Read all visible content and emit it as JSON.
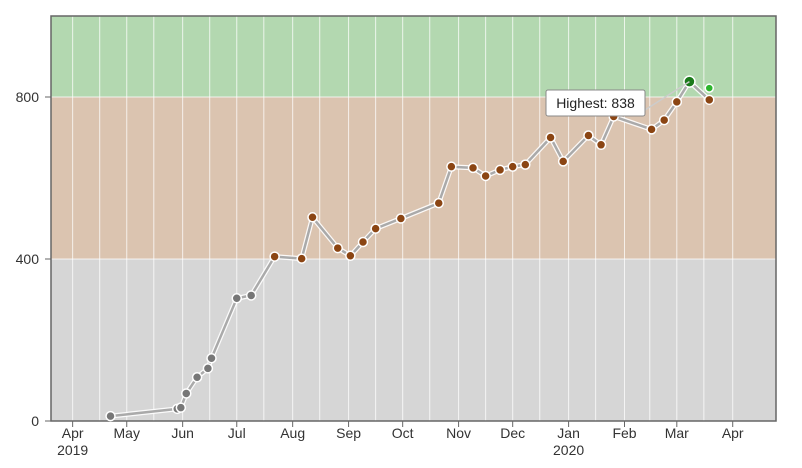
{
  "chart_data": {
    "type": "line",
    "title": "",
    "xlabel": "",
    "ylabel": "",
    "ylim": [
      0,
      1000
    ],
    "xlim": [
      "2019-03-20",
      "2020-04-25"
    ],
    "y_ticks": [
      "0",
      "400",
      "800"
    ],
    "x_ticks": [
      {
        "label": "Apr",
        "year": "2019",
        "date": "2019-04-01"
      },
      {
        "label": "May",
        "year": "",
        "date": "2019-05-01"
      },
      {
        "label": "Jun",
        "year": "",
        "date": "2019-06-01"
      },
      {
        "label": "Jul",
        "year": "",
        "date": "2019-07-01"
      },
      {
        "label": "Aug",
        "year": "",
        "date": "2019-08-01"
      },
      {
        "label": "Sep",
        "year": "",
        "date": "2019-09-01"
      },
      {
        "label": "Oct",
        "year": "",
        "date": "2019-10-01"
      },
      {
        "label": "Nov",
        "year": "",
        "date": "2019-11-01"
      },
      {
        "label": "Dec",
        "year": "",
        "date": "2019-12-01"
      },
      {
        "label": "Jan",
        "year": "2020",
        "date": "2020-01-01"
      },
      {
        "label": "Feb",
        "year": "",
        "date": "2020-02-01"
      },
      {
        "label": "Mar",
        "year": "",
        "date": "2020-03-01"
      },
      {
        "label": "Apr",
        "year": "",
        "date": "2020-04-01"
      }
    ],
    "bands": [
      {
        "from": 0,
        "to": 400,
        "color": "#d6d6d6"
      },
      {
        "from": 400,
        "to": 800,
        "color": "#dbc4b0"
      },
      {
        "from": 800,
        "to": 1000,
        "color": "#b3d8b0"
      }
    ],
    "grid": true,
    "line_color": "#aaaaaa",
    "point_colors": {
      "grey": "#777777",
      "brown": "#8b4513",
      "green": "#1a7a1a",
      "light_green": "#2db52d"
    },
    "series": [
      {
        "points": [
          {
            "x": "2019-04-22",
            "y": 12,
            "color": "grey"
          },
          {
            "x": "2019-05-29",
            "y": 30,
            "color": "grey"
          },
          {
            "x": "2019-05-31",
            "y": 33,
            "color": "grey"
          },
          {
            "x": "2019-06-03",
            "y": 68,
            "color": "grey"
          },
          {
            "x": "2019-06-09",
            "y": 108,
            "color": "grey"
          },
          {
            "x": "2019-06-15",
            "y": 130,
            "color": "grey"
          },
          {
            "x": "2019-06-17",
            "y": 155,
            "color": "grey"
          },
          {
            "x": "2019-07-01",
            "y": 303,
            "color": "grey"
          },
          {
            "x": "2019-07-09",
            "y": 310,
            "color": "grey"
          },
          {
            "x": "2019-07-22",
            "y": 406,
            "color": "brown"
          },
          {
            "x": "2019-08-06",
            "y": 401,
            "color": "brown"
          },
          {
            "x": "2019-08-12",
            "y": 503,
            "color": "brown"
          },
          {
            "x": "2019-08-26",
            "y": 427,
            "color": "brown"
          },
          {
            "x": "2019-09-02",
            "y": 408,
            "color": "brown"
          },
          {
            "x": "2019-09-09",
            "y": 442,
            "color": "brown"
          },
          {
            "x": "2019-09-16",
            "y": 475,
            "color": "brown"
          },
          {
            "x": "2019-09-30",
            "y": 500,
            "color": "brown"
          },
          {
            "x": "2019-10-21",
            "y": 538,
            "color": "brown"
          },
          {
            "x": "2019-10-28",
            "y": 628,
            "color": "brown"
          },
          {
            "x": "2019-11-09",
            "y": 625,
            "color": "brown"
          },
          {
            "x": "2019-11-16",
            "y": 605,
            "color": "brown"
          },
          {
            "x": "2019-11-24",
            "y": 620,
            "color": "brown"
          },
          {
            "x": "2019-12-01",
            "y": 628,
            "color": "brown"
          },
          {
            "x": "2019-12-08",
            "y": 633,
            "color": "brown"
          },
          {
            "x": "2019-12-22",
            "y": 700,
            "color": "brown"
          },
          {
            "x": "2019-12-29",
            "y": 641,
            "color": "brown"
          },
          {
            "x": "2020-01-12",
            "y": 705,
            "color": "brown"
          },
          {
            "x": "2020-01-19",
            "y": 682,
            "color": "brown"
          },
          {
            "x": "2020-01-26",
            "y": 752,
            "color": "brown"
          },
          {
            "x": "2020-02-16",
            "y": 720,
            "color": "brown"
          },
          {
            "x": "2020-02-23",
            "y": 743,
            "color": "brown"
          },
          {
            "x": "2020-03-01",
            "y": 788,
            "color": "brown"
          },
          {
            "x": "2020-03-08",
            "y": 838,
            "color": "green",
            "highlight": true
          },
          {
            "x": "2020-03-19",
            "y": 793,
            "color": "brown"
          }
        ]
      }
    ],
    "extra_points": [
      {
        "x": "2020-03-19",
        "y": 822,
        "color": "light_green"
      }
    ],
    "annotation": {
      "text": "Highest: 838",
      "point_index": 32
    }
  }
}
